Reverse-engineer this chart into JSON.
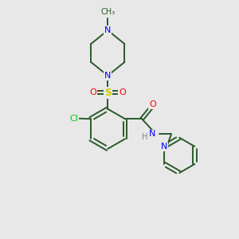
{
  "bg_color": "#e8e8e8",
  "bond_color": "#2a5a2a",
  "N_color": "#0000ff",
  "O_color": "#ff0000",
  "S_color": "#cccc00",
  "Cl_color": "#00cc00",
  "H_color": "#808080",
  "lw": 1.4,
  "doff": 0.06,
  "xlim": [
    0,
    10
  ],
  "ylim": [
    0,
    10
  ]
}
